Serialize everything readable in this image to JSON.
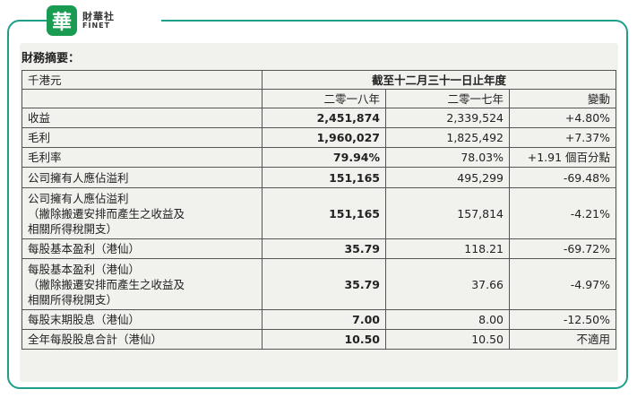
{
  "brand": {
    "mark": "華",
    "name_cn": "財華社",
    "name_en": "FINET"
  },
  "heading": "財務摘要：",
  "table": {
    "unit": "千港元",
    "period_header": "截至十二月三十一日止年度",
    "columns": [
      "二零一八年",
      "二零一七年",
      "變動"
    ],
    "rows": [
      {
        "label": [
          "收益"
        ],
        "y2018": "2,451,874",
        "y2017": "2,339,524",
        "change": "+4.80%"
      },
      {
        "label": [
          "毛利"
        ],
        "y2018": "1,960,027",
        "y2017": "1,825,492",
        "change": "+7.37%"
      },
      {
        "label": [
          "毛利率"
        ],
        "y2018": "79.94%",
        "y2017": "78.03%",
        "change": "+1.91 個百分點"
      },
      {
        "label": [
          "公司擁有人應佔溢利"
        ],
        "y2018": "151,165",
        "y2017": "495,299",
        "change": "-69.48%"
      },
      {
        "label": [
          "公司擁有人應佔溢利",
          "（撇除搬遷安排而產生之收益及",
          "相關所得稅開支）"
        ],
        "y2018": "151,165",
        "y2017": "157,814",
        "change": "-4.21%"
      },
      {
        "label": [
          "每股基本盈利（港仙）"
        ],
        "y2018": "35.79",
        "y2017": "118.21",
        "change": "-69.72%"
      },
      {
        "label": [
          "每股基本盈利（港仙）",
          "（撇除搬遷安排而產生之收益及",
          "相關所得稅開支）"
        ],
        "y2018": "35.79",
        "y2017": "37.66",
        "change": "-4.97%"
      },
      {
        "label": [
          "每股末期股息（港仙）"
        ],
        "y2018": "7.00",
        "y2017": "8.00",
        "change": "-12.50%"
      },
      {
        "label": [
          "全年每股股息合計（港仙）"
        ],
        "y2018": "10.50",
        "y2017": "10.50",
        "change": "不適用"
      }
    ]
  }
}
